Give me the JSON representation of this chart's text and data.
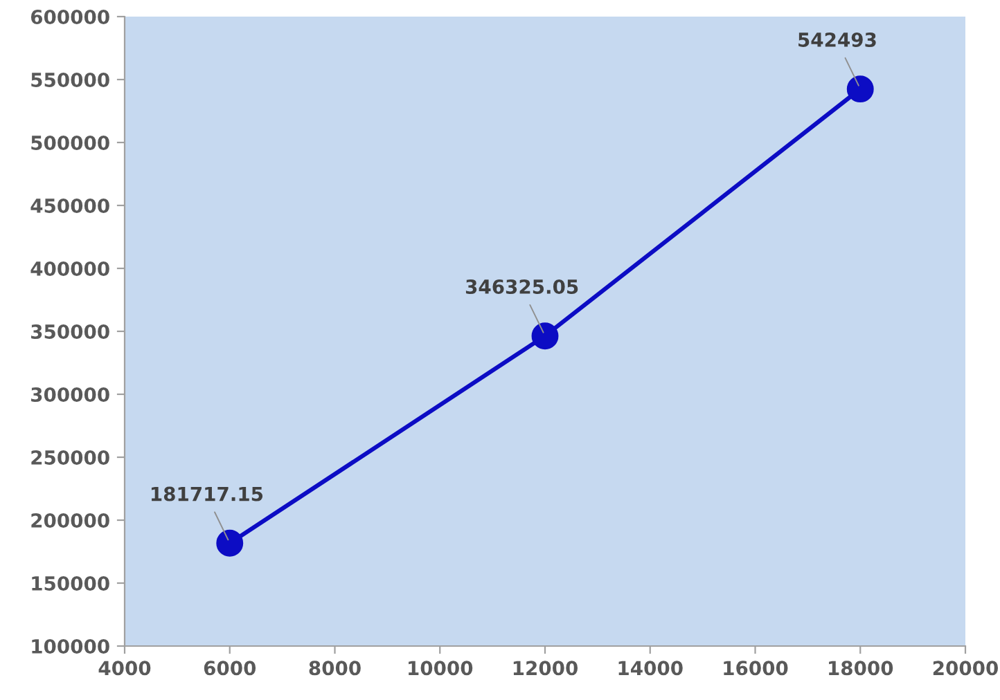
{
  "chart_data": {
    "type": "line",
    "x": [
      6000,
      12000,
      18000
    ],
    "series": [
      {
        "color": "#0c0cc4",
        "values": [
          181717.15,
          346325.05,
          542493
        ]
      }
    ],
    "line_style": "solid",
    "marker": "circle",
    "data_labels": true,
    "grid": false,
    "legend": false,
    "xlim": [
      4000,
      20000
    ],
    "xticks": [
      4000,
      6000,
      8000,
      10000,
      12000,
      14000,
      16000,
      18000,
      20000
    ],
    "ylim": [
      100000,
      600000
    ],
    "yticks": [
      100000,
      150000,
      200000,
      250000,
      300000,
      350000,
      400000,
      450000,
      500000,
      550000,
      600000
    ]
  }
}
